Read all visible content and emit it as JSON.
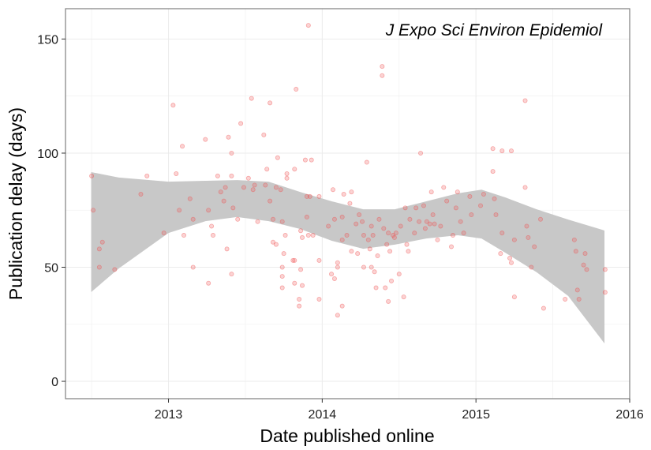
{
  "chart_data": {
    "type": "scatter",
    "annotation": "J Expo Sci Environ Epidemiol",
    "x_label": "Date published online",
    "y_label": "Publication delay (days)",
    "xlim": [
      2012.33,
      2016.0
    ],
    "ylim": [
      -7.6,
      163.3
    ],
    "xticks": [
      2013,
      2014,
      2015,
      2016
    ],
    "yticks": [
      0,
      50,
      100,
      150
    ],
    "grid": true,
    "color": "#f05050",
    "x": [
      2012.5,
      2012.51,
      2012.55,
      2012.55,
      2012.57,
      2012.65,
      2012.82,
      2012.86,
      2012.97,
      2013.03,
      2013.05,
      2013.07,
      2013.09,
      2013.1,
      2013.14,
      2013.16,
      2013.16,
      2013.24,
      2013.26,
      2013.26,
      2013.28,
      2013.29,
      2013.32,
      2013.34,
      2013.36,
      2013.37,
      2013.38,
      2013.39,
      2013.41,
      2013.41,
      2013.41,
      2013.42,
      2013.45,
      2013.47,
      2013.49,
      2013.52,
      2013.54,
      2013.55,
      2013.56,
      2013.58,
      2013.62,
      2013.63,
      2013.64,
      2013.66,
      2013.66,
      2013.68,
      2013.68,
      2013.7,
      2013.7,
      2013.71,
      2013.73,
      2013.74,
      2013.74,
      2013.74,
      2013.74,
      2013.75,
      2013.76,
      2013.77,
      2013.77,
      2013.81,
      2013.82,
      2013.82,
      2013.82,
      2013.83,
      2013.85,
      2013.85,
      2013.86,
      2013.86,
      2013.87,
      2013.87,
      2013.89,
      2013.9,
      2013.9,
      2013.91,
      2013.91,
      2013.92,
      2013.93,
      2013.94,
      2013.98,
      2013.98,
      2013.98,
      2014.04,
      2014.06,
      2014.07,
      2014.08,
      2014.08,
      2014.1,
      2014.1,
      2014.1,
      2014.13,
      2014.13,
      2014.13,
      2014.14,
      2014.16,
      2014.18,
      2014.19,
      2014.19,
      2014.22,
      2014.23,
      2014.24,
      2014.26,
      2014.27,
      2014.27,
      2014.29,
      2014.3,
      2014.31,
      2014.32,
      2014.32,
      2014.33,
      2014.34,
      2014.35,
      2014.36,
      2014.37,
      2014.39,
      2014.39,
      2014.4,
      2014.41,
      2014.42,
      2014.43,
      2014.43,
      2014.44,
      2014.45,
      2014.46,
      2014.47,
      2014.48,
      2014.5,
      2014.51,
      2014.53,
      2014.54,
      2014.55,
      2014.56,
      2014.57,
      2014.6,
      2014.61,
      2014.63,
      2014.64,
      2014.66,
      2014.67,
      2014.68,
      2014.7,
      2014.71,
      2014.72,
      2014.73,
      2014.75,
      2014.77,
      2014.79,
      2014.81,
      2014.84,
      2014.85,
      2014.87,
      2014.88,
      2014.9,
      2014.92,
      2014.96,
      2014.97,
      2015.03,
      2015.05,
      2015.11,
      2015.11,
      2015.12,
      2015.13,
      2015.16,
      2015.17,
      2015.17,
      2015.22,
      2015.23,
      2015.23,
      2015.25,
      2015.25,
      2015.32,
      2015.32,
      2015.33,
      2015.34,
      2015.36,
      2015.38,
      2015.42,
      2015.44,
      2015.58,
      2015.64,
      2015.65,
      2015.66,
      2015.67,
      2015.7,
      2015.71,
      2015.72,
      2015.84,
      2015.84
    ],
    "values": [
      90,
      75,
      58,
      50,
      61,
      49,
      82,
      90,
      65,
      121,
      91,
      75,
      103,
      64,
      80,
      71,
      50,
      106,
      75,
      43,
      68,
      64,
      90,
      83,
      79,
      85,
      58,
      107,
      100,
      90,
      47,
      76,
      71,
      113,
      85,
      89,
      124,
      84,
      86,
      70,
      108,
      86,
      93,
      122,
      79,
      71,
      61,
      85,
      60,
      98,
      84,
      50,
      46,
      41,
      70,
      56,
      64,
      91,
      89,
      53,
      93,
      43,
      53,
      128,
      36,
      33,
      66,
      49,
      63,
      42,
      97,
      81,
      72,
      156,
      64,
      81,
      97,
      64,
      81,
      53,
      36,
      68,
      47,
      84,
      71,
      45,
      52,
      29,
      50,
      62,
      72,
      33,
      82,
      64,
      78,
      83,
      57,
      69,
      56,
      73,
      70,
      50,
      64,
      96,
      62,
      58,
      68,
      50,
      64,
      48,
      41,
      55,
      71,
      138,
      134,
      67,
      41,
      60,
      35,
      65,
      57,
      44,
      64,
      63,
      65,
      47,
      68,
      37,
      76,
      60,
      57,
      71,
      65,
      76,
      70,
      100,
      77,
      67,
      70,
      69,
      83,
      73,
      69,
      62,
      68,
      85,
      79,
      59,
      64,
      76,
      83,
      70,
      65,
      81,
      73,
      77,
      82,
      102,
      92,
      80,
      73,
      56,
      101,
      65,
      54,
      52,
      101,
      37,
      62,
      85,
      123,
      68,
      63,
      50,
      59,
      71,
      32,
      36,
      62,
      57,
      40,
      36,
      51,
      56,
      49,
      49,
      39
    ],
    "band": {
      "color": "#c8c8c8",
      "x": [
        2012.497,
        2012.677,
        2013.0,
        2013.241,
        2013.446,
        2013.651,
        2013.856,
        2014.062,
        2014.267,
        2014.472,
        2014.677,
        2014.882,
        2015.036,
        2015.19,
        2015.395,
        2015.6,
        2015.836
      ],
      "upper": [
        91.7,
        89.3,
        87.5,
        87.9,
        88.2,
        87.5,
        83.0,
        78.9,
        75.4,
        75.4,
        78.9,
        82.4,
        84.0,
        80.6,
        75.4,
        70.9,
        66.1
      ],
      "lower": [
        39.1,
        49.5,
        65.0,
        70.2,
        72.0,
        70.2,
        66.8,
        61.6,
        58.1,
        59.9,
        62.6,
        64.0,
        62.6,
        56.4,
        47.8,
        37.4,
        16.6
      ]
    }
  }
}
